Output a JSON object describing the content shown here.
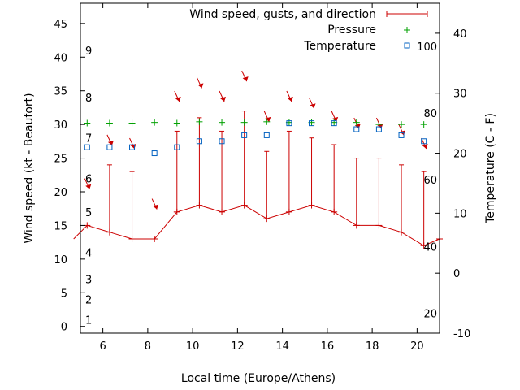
{
  "chart_data": {
    "type": "line",
    "xlabel": "Local time (Europe/Athens)",
    "ylabel": "Wind speed (kt - Beaufort)",
    "y2label": "Temperature (C - F)",
    "xlim": [
      5,
      21
    ],
    "ylim": [
      -1,
      48
    ],
    "y2lim": [
      -10,
      45
    ],
    "x_ticks": [
      6,
      8,
      10,
      12,
      14,
      16,
      18,
      20
    ],
    "y_ticks": [
      0,
      5,
      10,
      15,
      20,
      25,
      30,
      35,
      40,
      45
    ],
    "y2_ticks": [
      -10,
      0,
      10,
      20,
      30,
      40
    ],
    "beaufort_labels": [
      {
        "label": "1",
        "y": 1
      },
      {
        "label": "2",
        "y": 4
      },
      {
        "label": "3",
        "y": 7
      },
      {
        "label": "4",
        "y": 11
      },
      {
        "label": "5",
        "y": 17
      },
      {
        "label": "6",
        "y": 22
      },
      {
        "label": "7",
        "y": 28
      },
      {
        "label": "8",
        "y": 34
      },
      {
        "label": "9",
        "y": 41
      }
    ],
    "fahrenheit_labels": [
      {
        "label": "20",
        "y2": -6.7
      },
      {
        "label": "40",
        "y2": 4.4
      },
      {
        "label": "60",
        "y2": 15.6
      },
      {
        "label": "80",
        "y2": 26.7
      },
      {
        "label": "100",
        "y2": 37.8
      }
    ],
    "legend_position": "top-right",
    "grid": false,
    "series": [
      {
        "name": "Wind speed, gusts, and direction",
        "color": "#cc0000",
        "x": [
          4.7,
          5.3,
          6.3,
          7.3,
          8.3,
          9.3,
          10.3,
          11.3,
          12.3,
          13.3,
          14.3,
          15.3,
          16.3,
          17.3,
          18.3,
          19.3,
          20.3,
          21
        ],
        "speed": [
          13,
          15,
          14,
          13,
          13,
          17,
          18,
          17,
          18,
          16,
          17,
          18,
          17,
          15,
          15,
          14,
          12,
          13
        ],
        "gusts": [
          null,
          null,
          24,
          23,
          null,
          29,
          31,
          29,
          32,
          26,
          29,
          28,
          27,
          25,
          25,
          24,
          23,
          null
        ],
        "arrows": [
          {
            "x": 5.3,
            "y": 21
          },
          {
            "x": 6.3,
            "y": 27.5
          },
          {
            "x": 7.3,
            "y": 27
          },
          {
            "x": 8.3,
            "y": 18
          },
          {
            "x": 9.3,
            "y": 34
          },
          {
            "x": 10.3,
            "y": 36
          },
          {
            "x": 11.3,
            "y": 34
          },
          {
            "x": 12.3,
            "y": 37
          },
          {
            "x": 13.3,
            "y": 31
          },
          {
            "x": 14.3,
            "y": 34
          },
          {
            "x": 15.3,
            "y": 33
          },
          {
            "x": 16.3,
            "y": 31
          },
          {
            "x": 17.3,
            "y": 30
          },
          {
            "x": 18.3,
            "y": 30
          },
          {
            "x": 19.3,
            "y": 29
          },
          {
            "x": 20.3,
            "y": 27
          }
        ]
      },
      {
        "name": "Pressure",
        "color": "#00a000",
        "marker": "plus",
        "x": [
          5.3,
          6.3,
          7.3,
          8.3,
          9.3,
          10.3,
          11.3,
          12.3,
          13.3,
          14.3,
          15.3,
          16.3,
          17.3,
          18.3,
          19.3,
          20.3
        ],
        "y": [
          30.2,
          30.2,
          30.2,
          30.3,
          30.2,
          30.4,
          30.3,
          30.3,
          30.4,
          30.3,
          30.3,
          30.3,
          30.3,
          30.0,
          30.0,
          30.0
        ]
      },
      {
        "name": "Temperature",
        "color": "#0060c0",
        "marker": "square",
        "axis": "y2",
        "x": [
          5.3,
          6.3,
          7.3,
          8.3,
          9.3,
          10.3,
          11.3,
          12.3,
          13.3,
          14.3,
          15.3,
          16.3,
          17.3,
          18.3,
          19.3,
          20.3
        ],
        "y": [
          21,
          21,
          21,
          20,
          21,
          22,
          22,
          23,
          23,
          25,
          25,
          25,
          24,
          24,
          23,
          22
        ]
      }
    ]
  }
}
